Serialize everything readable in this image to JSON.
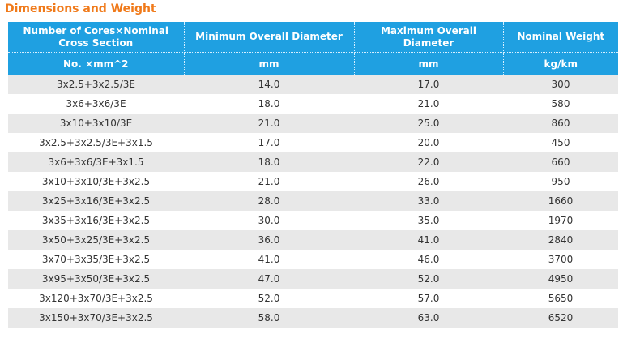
{
  "title": "Dimensions and Weight",
  "table": {
    "headers": [
      "Number of Cores×Nominal Cross Section",
      "Minimum Overall Diameter",
      "Maximum Overall Diameter",
      "Nominal Weight"
    ],
    "units": [
      "No. ×mm^2",
      "mm",
      "mm",
      "kg/km"
    ],
    "rows": [
      [
        "3x2.5+3x2.5/3E",
        "14.0",
        "17.0",
        "300"
      ],
      [
        "3x6+3x6/3E",
        "18.0",
        "21.0",
        "580"
      ],
      [
        "3x10+3x10/3E",
        "21.0",
        "25.0",
        "860"
      ],
      [
        "3x2.5+3x2.5/3E+3x1.5",
        "17.0",
        "20.0",
        "450"
      ],
      [
        "3x6+3x6/3E+3x1.5",
        "18.0",
        "22.0",
        "660"
      ],
      [
        "3x10+3x10/3E+3x2.5",
        "21.0",
        "26.0",
        "950"
      ],
      [
        "3x25+3x16/3E+3x2.5",
        "28.0",
        "33.0",
        "1660"
      ],
      [
        "3x35+3x16/3E+3x2.5",
        "30.0",
        "35.0",
        "1970"
      ],
      [
        "3x50+3x25/3E+3x2.5",
        "36.0",
        "41.0",
        "2840"
      ],
      [
        "3x70+3x35/3E+3x2.5",
        "41.0",
        "46.0",
        "3700"
      ],
      [
        "3x95+3x50/3E+3x2.5",
        "47.0",
        "52.0",
        "4950"
      ],
      [
        "3x120+3x70/3E+3x2.5",
        "52.0",
        "57.0",
        "5650"
      ],
      [
        "3x150+3x70/3E+3x2.5",
        "58.0",
        "63.0",
        "6520"
      ]
    ]
  },
  "colors": {
    "title": "#f07a1a",
    "header_bg": "#1fa0e1",
    "header_text": "#ffffff",
    "row_stripe": "#e8e8e8"
  }
}
